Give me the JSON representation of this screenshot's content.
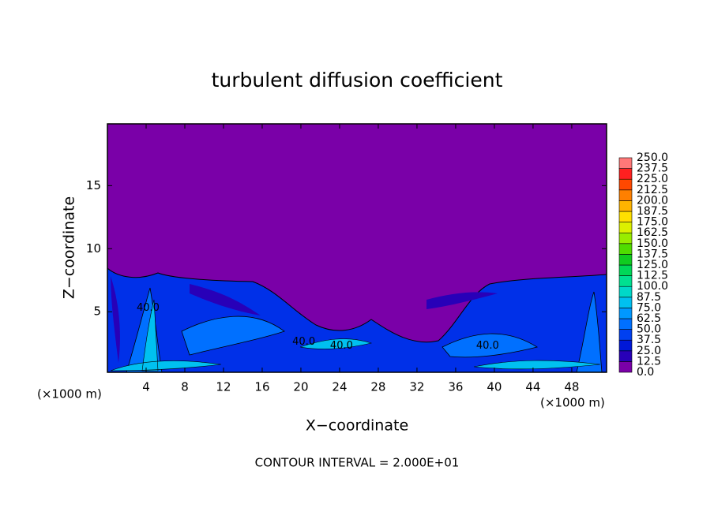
{
  "chart_data": {
    "type": "contourf",
    "title": "turbulent diffusion coefficient",
    "xlabel": "X−coordinate",
    "ylabel": "Z−coordinate",
    "xunit": "(×1000 m)",
    "yunit": "(×1000 m)",
    "note": "CONTOUR INTERVAL = 2.000E+01",
    "xlim": [
      0,
      51.6
    ],
    "ylim": [
      0.2,
      19.9
    ],
    "xticks": [
      4,
      8,
      12,
      16,
      20,
      24,
      28,
      32,
      36,
      40,
      44,
      48
    ],
    "yticks": [
      5,
      10,
      15
    ],
    "levels": [
      {
        "value": 0,
        "label": "0.0"
      },
      {
        "value": 12.5,
        "label": "12.5"
      },
      {
        "value": 25,
        "label": "25.0"
      },
      {
        "value": 37.5,
        "label": "37.5"
      },
      {
        "value": 50,
        "label": "50.0"
      },
      {
        "value": 62.5,
        "label": "62.5"
      },
      {
        "value": 75,
        "label": "75.0"
      },
      {
        "value": 87.5,
        "label": "87.5"
      },
      {
        "value": 100,
        "label": "100.0"
      },
      {
        "value": 112.5,
        "label": "112.5"
      },
      {
        "value": 125,
        "label": "125.0"
      },
      {
        "value": 137.5,
        "label": "137.5"
      },
      {
        "value": 150,
        "label": "150.0"
      },
      {
        "value": 162.5,
        "label": "162.5"
      },
      {
        "value": 175,
        "label": "175.0"
      },
      {
        "value": 187.5,
        "label": "187.5"
      },
      {
        "value": 200,
        "label": "200.0"
      },
      {
        "value": 212.5,
        "label": "212.5"
      },
      {
        "value": 225,
        "label": "225.0"
      },
      {
        "value": 237.5,
        "label": "237.5"
      },
      {
        "value": 250,
        "label": "250.0"
      }
    ],
    "colors": [
      "#7a00a8",
      "#2800b8",
      "#0018d8",
      "#0040f0",
      "#0070ff",
      "#0098ff",
      "#00c0f0",
      "#00d8c8",
      "#00e090",
      "#00d858",
      "#10cc20",
      "#50dc00",
      "#98ec00",
      "#dcf000",
      "#ffe000",
      "#ffb400",
      "#ff8000",
      "#ff4800",
      "#ff2020",
      "#ff7878"
    ],
    "contour_labels": [
      {
        "x": 4.2,
        "y": 5.3,
        "label": "40.0"
      },
      {
        "x": 20.3,
        "y": 2.6,
        "label": "40.0"
      },
      {
        "x": 24.2,
        "y": 2.3,
        "label": "40.0"
      },
      {
        "x": 39.3,
        "y": 2.3,
        "label": "40.0"
      }
    ]
  }
}
